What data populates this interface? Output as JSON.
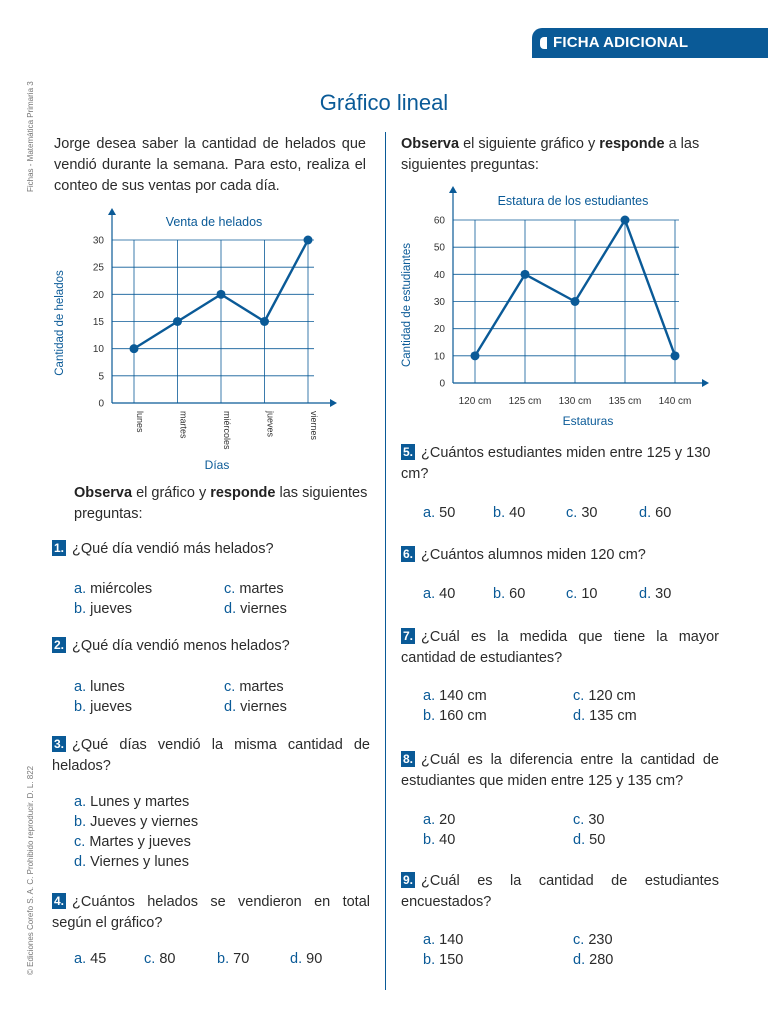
{
  "header": {
    "badge": "FICHA ADICIONAL"
  },
  "side_text_top": "Fichas - Matemática Primaria 3",
  "side_text_bottom": "© Ediciones Corefo S. A. C. Prohibido reproducir. D. L. 822",
  "title": "Gráfico lineal",
  "left": {
    "intro": "Jorge desea saber la cantidad de helados que vendió durante la semana. Para esto, realiza el conteo de sus ventas por cada día.",
    "observe": {
      "b1": "Observa",
      "t1": " el gráfico y ",
      "b2": "responde",
      "t2": " las siguientes preguntas:"
    }
  },
  "right": {
    "observe": {
      "b1": "Observa",
      "t1": " el siguiente gráfico y ",
      "b2": "responde",
      "t2": " a las siguientes preguntas:"
    }
  },
  "chart_data": [
    {
      "type": "line",
      "title": "Venta de helados",
      "xlabel": "Días",
      "ylabel": "Cantidad de helados",
      "categories": [
        "lunes",
        "martes",
        "miércoles",
        "jueves",
        "viernes"
      ],
      "values": [
        10,
        15,
        20,
        15,
        30
      ],
      "yticks": [
        "0",
        "5",
        "10",
        "15",
        "20",
        "25",
        "30"
      ],
      "ylim": [
        0,
        30
      ],
      "grid": true,
      "color": "#0a5a97"
    },
    {
      "type": "line",
      "title": "Estatura de los estudiantes",
      "xlabel": "Estaturas",
      "ylabel": "Cantidad de estudiantes",
      "categories": [
        "120 cm",
        "125 cm",
        "130 cm",
        "135 cm",
        "140 cm"
      ],
      "values": [
        10,
        40,
        30,
        60,
        10
      ],
      "yticks": [
        "0",
        "10",
        "20",
        "30",
        "40",
        "50",
        "60"
      ],
      "ylim": [
        0,
        60
      ],
      "grid": true,
      "color": "#0a5a97"
    }
  ],
  "questions": [
    {
      "num": "1.",
      "text": "¿Qué día vendió más helados?",
      "options": [
        {
          "l": "a.",
          "t": "miércoles"
        },
        {
          "l": "c.",
          "t": "martes"
        },
        {
          "l": "b.",
          "t": "jueves"
        },
        {
          "l": "d.",
          "t": "viernes"
        }
      ]
    },
    {
      "num": "2.",
      "text": "¿Qué día vendió menos helados?",
      "options": [
        {
          "l": "a.",
          "t": "lunes"
        },
        {
          "l": "c.",
          "t": "martes"
        },
        {
          "l": "b.",
          "t": "jueves"
        },
        {
          "l": "d.",
          "t": "viernes"
        }
      ]
    },
    {
      "num": "3.",
      "text": "¿Qué días vendió la misma cantidad de helados?",
      "options": [
        {
          "l": "a.",
          "t": "Lunes y martes"
        },
        {
          "l": "b.",
          "t": "Jueves y viernes"
        },
        {
          "l": "c.",
          "t": "Martes y jueves"
        },
        {
          "l": "d.",
          "t": "Viernes y lunes"
        }
      ]
    },
    {
      "num": "4.",
      "text": "¿Cuántos helados se vendieron en total según el gráfico?",
      "options": [
        {
          "l": "a.",
          "t": "45"
        },
        {
          "l": "c.",
          "t": "80"
        },
        {
          "l": "b.",
          "t": "70"
        },
        {
          "l": "d.",
          "t": "90"
        }
      ]
    },
    {
      "num": "5.",
      "text": "¿Cuántos estudiantes miden entre 125 y 130 cm?",
      "options": [
        {
          "l": "a.",
          "t": "50"
        },
        {
          "l": "b.",
          "t": "40"
        },
        {
          "l": "c.",
          "t": "30"
        },
        {
          "l": "d.",
          "t": "60"
        }
      ]
    },
    {
      "num": "6.",
      "text": "¿Cuántos alumnos miden 120 cm?",
      "options": [
        {
          "l": "a.",
          "t": "40"
        },
        {
          "l": "b.",
          "t": "60"
        },
        {
          "l": "c.",
          "t": "10"
        },
        {
          "l": "d.",
          "t": "30"
        }
      ]
    },
    {
      "num": "7.",
      "text": "¿Cuál es la medida que tiene la mayor cantidad de estudiantes?",
      "options": [
        {
          "l": "a.",
          "t": "140 cm"
        },
        {
          "l": "c.",
          "t": "120 cm"
        },
        {
          "l": "b.",
          "t": "160 cm"
        },
        {
          "l": "d.",
          "t": "135 cm"
        }
      ]
    },
    {
      "num": "8.",
      "text": "¿Cuál es la diferencia entre la cantidad de estudiantes que miden entre 125 y 135 cm?",
      "options": [
        {
          "l": "a.",
          "t": "20"
        },
        {
          "l": "c.",
          "t": "30"
        },
        {
          "l": "b.",
          "t": "40"
        },
        {
          "l": "d.",
          "t": "50"
        }
      ]
    },
    {
      "num": "9.",
      "text": "¿Cuál es la cantidad de estudiantes encuestados?",
      "options": [
        {
          "l": "a.",
          "t": "140"
        },
        {
          "l": "c.",
          "t": "230"
        },
        {
          "l": "b.",
          "t": "150"
        },
        {
          "l": "d.",
          "t": "280"
        }
      ]
    }
  ]
}
